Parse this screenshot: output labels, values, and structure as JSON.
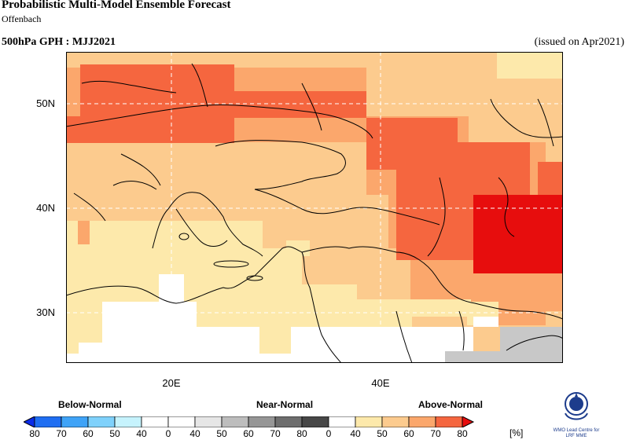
{
  "header": {
    "title": "Probabilistic Multi-Model Ensemble Forecast",
    "subtitle": "Offenbach",
    "variable": "500hPa GPH : MJJ2021",
    "issued": "(issued on Apr2021)"
  },
  "map": {
    "lat_labels": [
      "50N",
      "40N",
      "30N"
    ],
    "lon_labels": [
      "20E",
      "40E"
    ],
    "category_colors": {
      "above_40": "#fde9ab",
      "above_50": "#fccb8e",
      "above_60": "#fba76c",
      "above_70": "#f5663f",
      "above_80": "#e70d0d",
      "near_40": "#e7e7e7",
      "near_50": "#c8c8c8",
      "below_40": "#fdf3c8",
      "normal_white": "#ffffff"
    }
  },
  "legend": {
    "categories": [
      "Below-Normal",
      "Near-Normal",
      "Above-Normal"
    ],
    "unit": "[%]",
    "labels": [
      "80",
      "70",
      "60",
      "50",
      "40",
      "0",
      "40",
      "50",
      "60",
      "70",
      "80",
      "0",
      "40",
      "50",
      "60",
      "70",
      "80"
    ],
    "colors": [
      "#0a2be8",
      "#1f6ef2",
      "#3fa3f7",
      "#7fd1fb",
      "#c6f3fd",
      "#ffffff",
      "#ffffff",
      "#e6e6e6",
      "#bdbdbd",
      "#969696",
      "#6e6e6e",
      "#474747",
      "#ffffff",
      "#fde9ab",
      "#fccb8e",
      "#fba76c",
      "#f5663f",
      "#e70d0d"
    ]
  },
  "logo": {
    "text_line1": "WMO Lead Centre for",
    "text_line2": "LRF MME",
    "icon": "wmo-emblem-icon"
  }
}
